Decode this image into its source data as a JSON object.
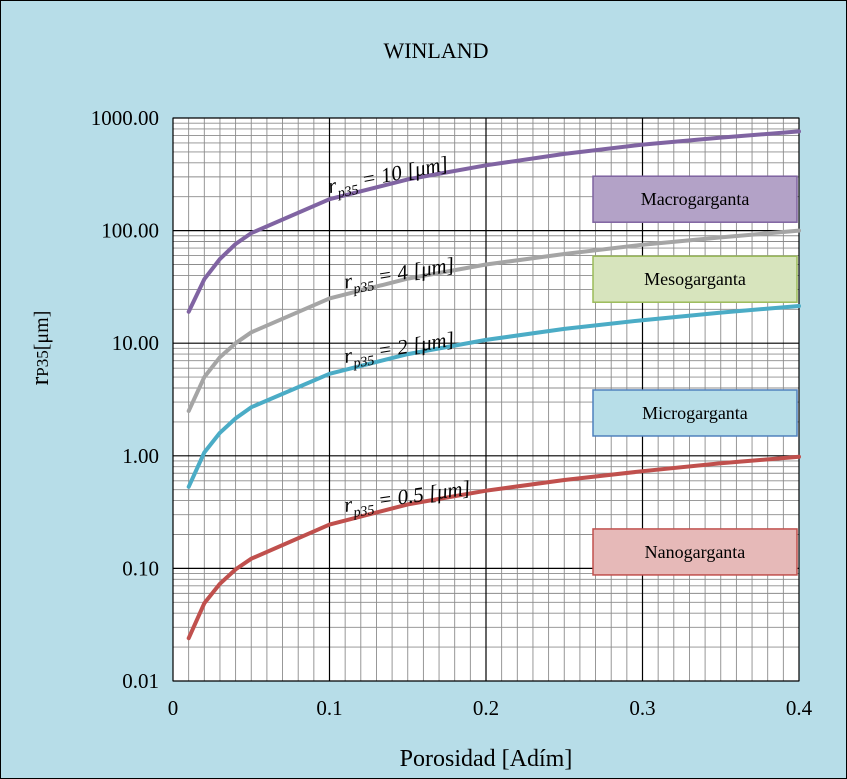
{
  "chart_data": {
    "type": "line",
    "title": "WINLAND",
    "xlabel": "Porosidad [Adím]",
    "ylabel": "rP35[μm]",
    "x_scale": "linear",
    "y_scale": "log",
    "xlim": [
      0,
      0.4
    ],
    "ylim": [
      0.01,
      1000
    ],
    "x_ticks": [
      0,
      0.1,
      0.2,
      0.3,
      0.4
    ],
    "x_tick_labels": [
      "0",
      "0.1",
      "0.2",
      "0.3",
      "0.4"
    ],
    "y_ticks": [
      0.01,
      0.1,
      1,
      10,
      100,
      1000
    ],
    "y_tick_labels": [
      "0.01",
      "0.10",
      "1.00",
      "10.00",
      "100.00",
      "1000.00"
    ],
    "grid": true,
    "plot_background": "#ffffff",
    "figure_background": "#b7dde8",
    "series": [
      {
        "name": "r_p35 = 10 [μm]",
        "color": "#8064a2",
        "x": [
          0.01,
          0.02,
          0.03,
          0.04,
          0.05,
          0.1,
          0.15,
          0.2,
          0.25,
          0.3,
          0.35,
          0.4
        ],
        "y": [
          19,
          37,
          56,
          76,
          95,
          190,
          285,
          380,
          480,
          580,
          670,
          760
        ]
      },
      {
        "name": "r_p35 = 4 [μm]",
        "color": "#a5a5a5",
        "x": [
          0.01,
          0.02,
          0.03,
          0.04,
          0.05,
          0.1,
          0.15,
          0.2,
          0.25,
          0.3,
          0.35,
          0.4
        ],
        "y": [
          2.5,
          5,
          7.5,
          10,
          12.5,
          25,
          37.5,
          50,
          62,
          75,
          87,
          100
        ]
      },
      {
        "name": "r_p35 = 2 [μm]",
        "color": "#4bacc6",
        "x": [
          0.01,
          0.02,
          0.03,
          0.04,
          0.05,
          0.1,
          0.15,
          0.2,
          0.25,
          0.3,
          0.35,
          0.4
        ],
        "y": [
          0.53,
          1.07,
          1.6,
          2.15,
          2.7,
          5.35,
          8,
          10.7,
          13.4,
          16,
          18.7,
          21.4
        ]
      },
      {
        "name": "r_p35 = 0.5 [μm]",
        "color": "#c0504d",
        "x": [
          0.01,
          0.02,
          0.03,
          0.04,
          0.05,
          0.1,
          0.15,
          0.2,
          0.25,
          0.3,
          0.35,
          0.4
        ],
        "y": [
          0.024,
          0.049,
          0.073,
          0.098,
          0.122,
          0.245,
          0.37,
          0.49,
          0.61,
          0.73,
          0.86,
          0.98
        ]
      }
    ],
    "annotations": [
      {
        "label": "Macrogarganta",
        "fill": "#b3a2c7",
        "stroke": "#7f63a1"
      },
      {
        "label": "Mesogarganta",
        "fill": "#d7e4bd",
        "stroke": "#9bbb59"
      },
      {
        "label": "Microgarganta",
        "fill": "#b7dee8",
        "stroke": "#4f81bd"
      },
      {
        "label": "Nanogarganta",
        "fill": "#e6b9b8",
        "stroke": "#c0504d"
      }
    ]
  }
}
